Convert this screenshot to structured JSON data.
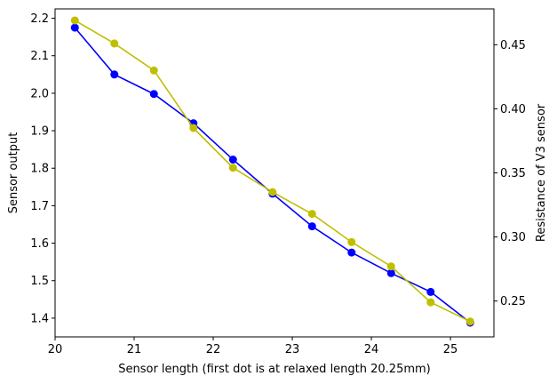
{
  "chart_data": {
    "type": "line",
    "title": "",
    "xlabel": "Sensor length (first dot is at relaxed length 20.25mm)",
    "ylabel": "Sensor output",
    "y2label": "Resistance of V3 sensor",
    "xlim": [
      20.0,
      25.55
    ],
    "ylim": [
      1.35,
      2.225
    ],
    "y2lim": [
      0.222,
      0.478
    ],
    "x_ticks": [
      "20",
      "21",
      "22",
      "23",
      "24",
      "25"
    ],
    "y_ticks": [
      "1.4",
      "1.5",
      "1.6",
      "1.7",
      "1.8",
      "1.9",
      "2.0",
      "2.1",
      "2.2"
    ],
    "y2_ticks": [
      "0.25",
      "0.30",
      "0.35",
      "0.40",
      "0.45"
    ],
    "x": [
      20.25,
      20.75,
      21.25,
      21.75,
      22.25,
      22.75,
      23.25,
      23.75,
      24.25,
      24.75,
      25.25
    ],
    "series": [
      {
        "axis": "left",
        "color": "#0000ff",
        "values": [
          2.175,
          2.05,
          1.998,
          1.92,
          1.823,
          1.732,
          1.645,
          1.575,
          1.52,
          1.47,
          1.388
        ]
      },
      {
        "axis": "right",
        "color": "#bfbf00",
        "values": [
          0.469,
          0.451,
          0.43,
          0.385,
          0.354,
          0.335,
          0.318,
          0.296,
          0.277,
          0.249,
          0.234
        ]
      }
    ],
    "grid": false,
    "legend": "none"
  }
}
